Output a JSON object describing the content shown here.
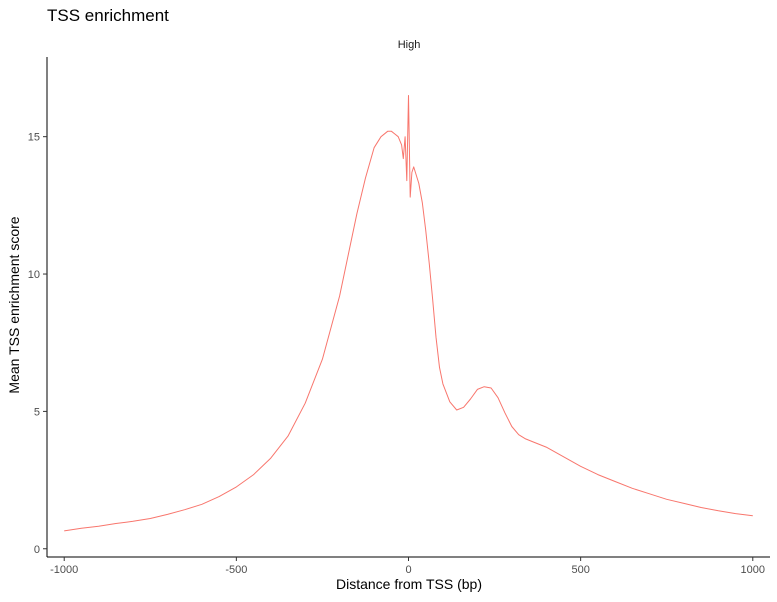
{
  "chart_data": {
    "type": "line",
    "title": "TSS enrichment",
    "facet_label": "High",
    "xlabel": "Distance from TSS (bp)",
    "ylabel": "Mean TSS enrichment score",
    "xlim": [
      -1050,
      1050
    ],
    "ylim": [
      -0.3,
      17.9
    ],
    "x_ticks": [
      -1000,
      -500,
      0,
      500,
      1000
    ],
    "x_tick_labels": [
      "-1000",
      "-500",
      "0",
      "500",
      "1000"
    ],
    "y_ticks": [
      0,
      5,
      10,
      15
    ],
    "y_tick_labels": [
      "0",
      "5",
      "10",
      "15"
    ],
    "grid": false,
    "legend": "none",
    "series": [
      {
        "color": "#F8766D",
        "x": [
          -1000,
          -950,
          -900,
          -850,
          -800,
          -750,
          -700,
          -650,
          -600,
          -550,
          -500,
          -450,
          -400,
          -350,
          -300,
          -250,
          -200,
          -150,
          -125,
          -100,
          -80,
          -60,
          -50,
          -40,
          -30,
          -20,
          -15,
          -10,
          -5,
          0,
          5,
          10,
          15,
          20,
          30,
          40,
          50,
          60,
          70,
          80,
          90,
          100,
          120,
          140,
          160,
          180,
          200,
          220,
          240,
          260,
          280,
          300,
          320,
          340,
          360,
          380,
          400,
          450,
          500,
          550,
          600,
          650,
          700,
          750,
          800,
          850,
          900,
          950,
          1000
        ],
        "y": [
          0.65,
          0.75,
          0.82,
          0.92,
          1.0,
          1.1,
          1.25,
          1.42,
          1.62,
          1.9,
          2.25,
          2.7,
          3.3,
          4.1,
          5.3,
          6.9,
          9.2,
          12.2,
          13.5,
          14.6,
          15.0,
          15.2,
          15.2,
          15.1,
          15.0,
          14.7,
          14.2,
          15.0,
          13.4,
          16.5,
          12.8,
          13.7,
          13.9,
          13.7,
          13.3,
          12.6,
          11.6,
          10.4,
          9.1,
          7.7,
          6.6,
          6.0,
          5.35,
          5.05,
          5.15,
          5.45,
          5.8,
          5.9,
          5.85,
          5.5,
          4.95,
          4.45,
          4.15,
          4.0,
          3.9,
          3.8,
          3.7,
          3.35,
          3.0,
          2.7,
          2.45,
          2.2,
          2.0,
          1.8,
          1.65,
          1.5,
          1.38,
          1.28,
          1.2
        ]
      }
    ]
  }
}
